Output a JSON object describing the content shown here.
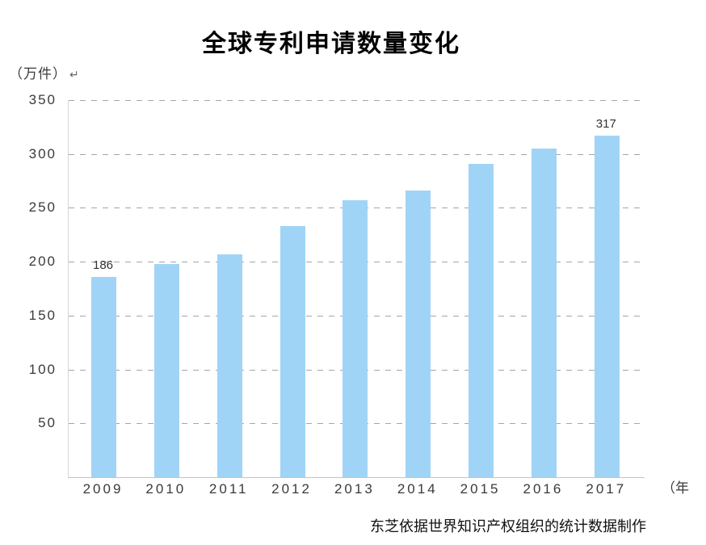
{
  "title": "全球专利申请数量变化",
  "y_axis_unit": "（万件）",
  "return_mark": "↵",
  "x_axis_unit": "（年",
  "source": "东芝依据世界知识产权组织的统计数据制作",
  "chart_data": {
    "type": "bar",
    "title": "全球专利申请数量变化",
    "ylabel": "（万件）",
    "xlabel": "（年）",
    "categories": [
      "2009",
      "2010",
      "2011",
      "2012",
      "2013",
      "2014",
      "2015",
      "2016",
      "2017"
    ],
    "values": [
      186,
      198,
      207,
      233,
      257,
      266,
      291,
      305,
      317
    ],
    "ylim": [
      0,
      350
    ],
    "yticks": [
      50,
      100,
      150,
      200,
      250,
      300,
      350
    ],
    "grid": "horizontal-dashed",
    "legend": "none",
    "bar_color": "#a0d4f6",
    "value_labels": [
      {
        "category": "2009",
        "label": "186"
      },
      {
        "category": "2017",
        "label": "317"
      }
    ]
  }
}
